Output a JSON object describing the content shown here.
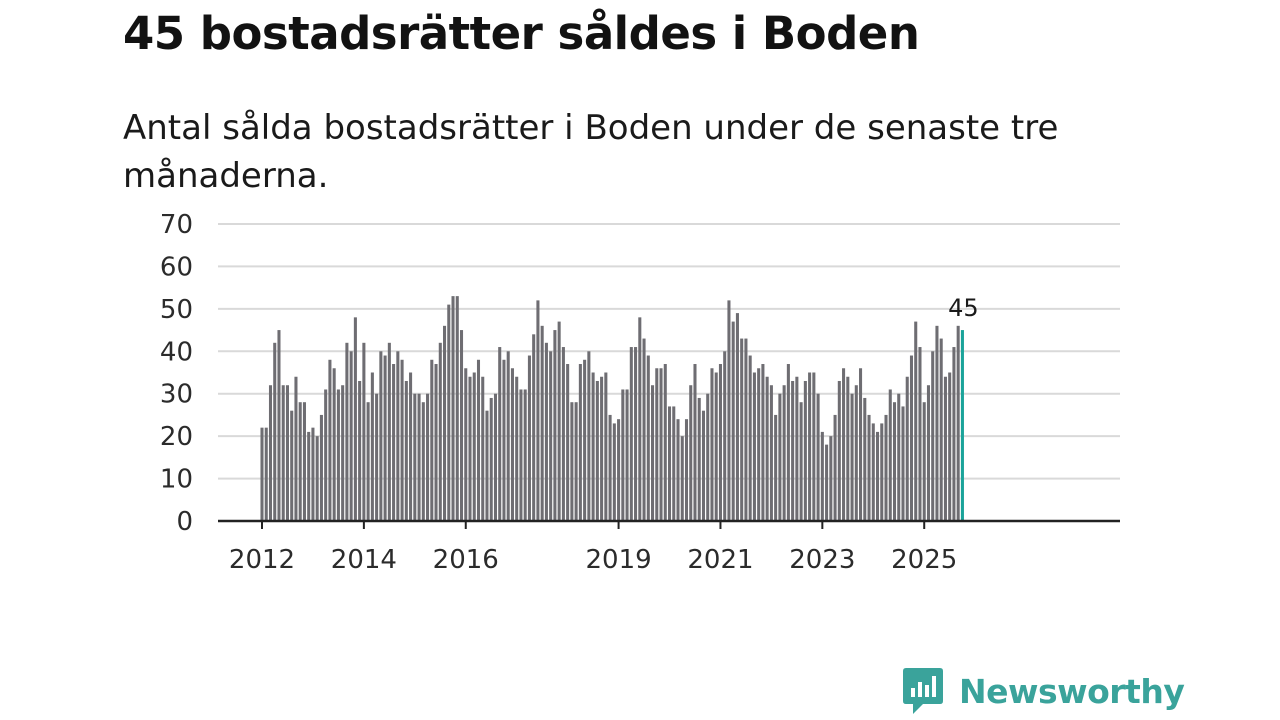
{
  "title": "45 bostadsrätter såldes i Boden",
  "subtitle": "Antal sålda bostadsrätter i Boden under de senaste tre månaderna.",
  "brand": {
    "name": "Newsworthy",
    "icon": "newsworthy-logo-icon",
    "color": "#3aa39b"
  },
  "colors": {
    "bar": "#6e6d72",
    "highlight": "#1aa39a",
    "grid": "#d9d9d9",
    "axis": "#222222"
  },
  "chart_data": {
    "type": "bar",
    "title": "45 bostadsrätter såldes i Boden",
    "xlabel": "",
    "ylabel": "",
    "ylim": [
      0,
      70
    ],
    "yticks": [
      0,
      10,
      20,
      30,
      40,
      50,
      60,
      70
    ],
    "xticks": [
      "2012",
      "2014",
      "2016",
      "2019",
      "2021",
      "2023",
      "2025"
    ],
    "xtick_index": [
      0,
      24,
      48,
      84,
      108,
      132,
      156
    ],
    "grid": true,
    "highlight_label": "45",
    "values": [
      22,
      22,
      32,
      42,
      45,
      32,
      32,
      26,
      34,
      28,
      28,
      21,
      22,
      20,
      25,
      31,
      38,
      36,
      31,
      32,
      42,
      40,
      48,
      33,
      42,
      28,
      35,
      30,
      40,
      39,
      42,
      37,
      40,
      38,
      33,
      35,
      30,
      30,
      28,
      30,
      38,
      37,
      42,
      46,
      51,
      53,
      53,
      45,
      36,
      34,
      35,
      38,
      34,
      26,
      29,
      30,
      41,
      38,
      40,
      36,
      34,
      31,
      31,
      39,
      44,
      52,
      46,
      42,
      40,
      45,
      47,
      41,
      37,
      28,
      28,
      37,
      38,
      40,
      35,
      33,
      34,
      35,
      25,
      23,
      24,
      31,
      31,
      41,
      41,
      48,
      43,
      39,
      32,
      36,
      36,
      37,
      27,
      27,
      24,
      20,
      24,
      32,
      37,
      29,
      26,
      30,
      36,
      35,
      37,
      40,
      52,
      47,
      49,
      43,
      43,
      39,
      35,
      36,
      37,
      34,
      32,
      25,
      30,
      32,
      37,
      33,
      34,
      28,
      33,
      35,
      35,
      30,
      21,
      18,
      20,
      25,
      33,
      36,
      34,
      30,
      32,
      36,
      29,
      25,
      23,
      21,
      23,
      25,
      31,
      28,
      30,
      27,
      34,
      39,
      47,
      41,
      28,
      32,
      40,
      46,
      43,
      34,
      35,
      41,
      46,
      45
    ]
  }
}
